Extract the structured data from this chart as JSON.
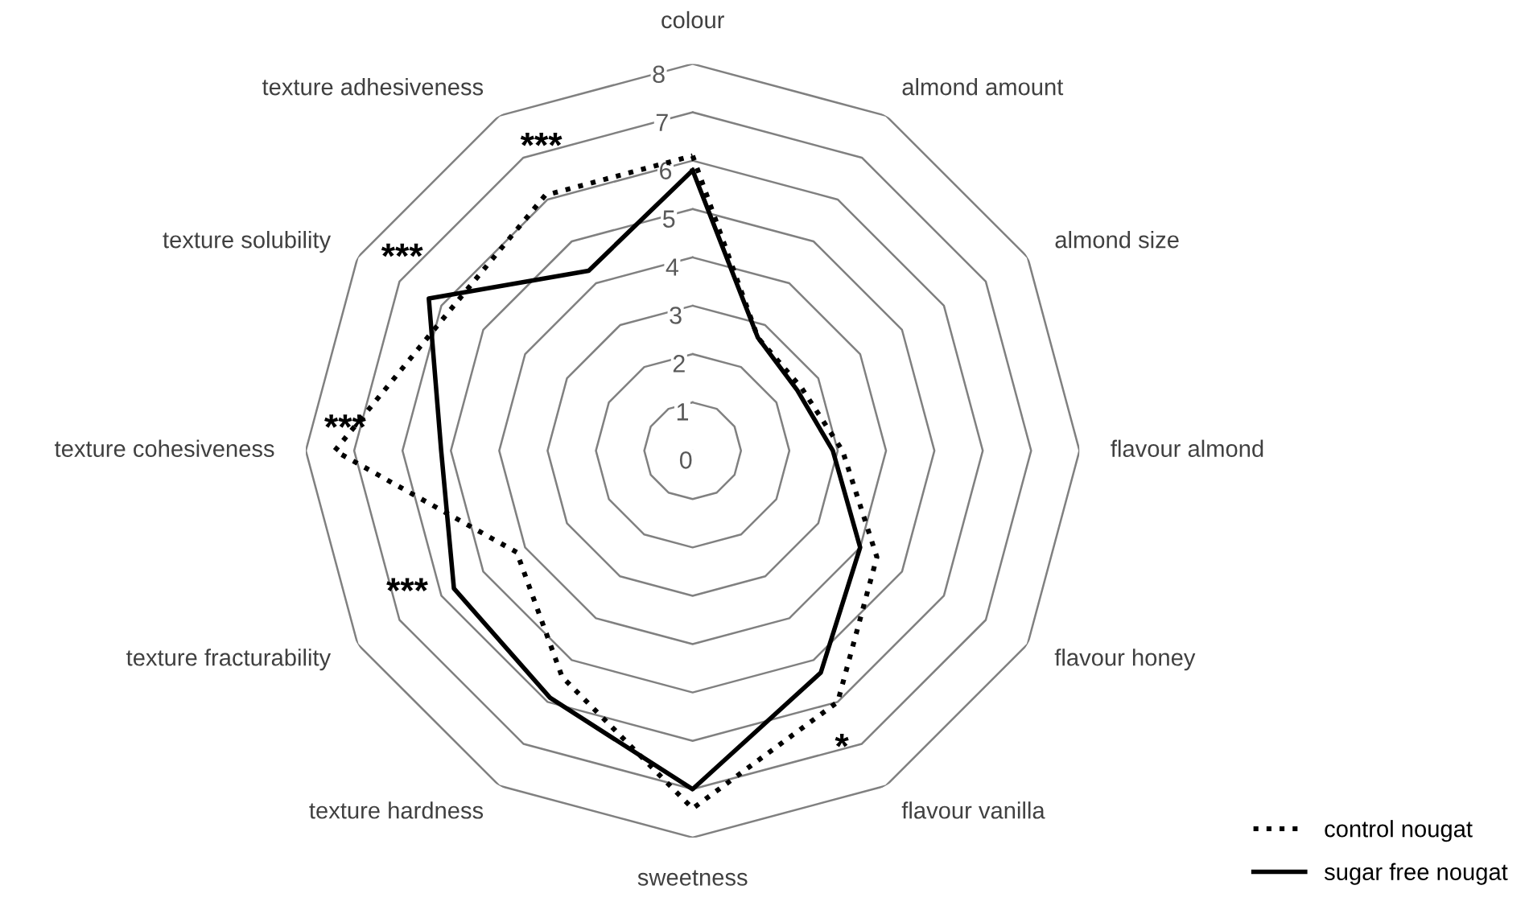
{
  "chart_data": {
    "type": "radar",
    "categories": [
      "colour",
      "almond amount",
      "almond size",
      "flavour almond",
      "flavour honey",
      "flavour vanilla",
      "sweetness",
      "texture hardness",
      "texture fracturability",
      "texture cohesiveness",
      "texture solubility",
      "texture adhesiveness"
    ],
    "series": [
      {
        "name": "control nougat",
        "color": "#000000",
        "line_style": "dotted",
        "values": [
          6.1,
          2.7,
          2.6,
          3.1,
          4.4,
          6.0,
          7.4,
          5.4,
          4.2,
          7.4,
          5.8,
          6.1
        ]
      },
      {
        "name": "sugar free nougat",
        "color": "#000000",
        "line_style": "solid",
        "values": [
          5.8,
          2.7,
          2.5,
          2.9,
          4.0,
          5.3,
          7.0,
          5.9,
          5.7,
          5.2,
          6.3,
          4.3
        ]
      }
    ],
    "ylim": [
      0,
      8
    ],
    "yticks": [
      0,
      1,
      2,
      3,
      4,
      5,
      6,
      7,
      8
    ],
    "grid": true,
    "legend": "bottom right",
    "marker": "none",
    "annotations": [
      {
        "text": "***",
        "x": "texture adhesiveness"
      },
      {
        "text": "***",
        "x": "texture solubility"
      },
      {
        "text": "***",
        "x": "texture cohesiveness"
      },
      {
        "text": "***",
        "x": "texture fracturability"
      },
      {
        "text": "*",
        "x": "flavour vanilla"
      }
    ]
  }
}
